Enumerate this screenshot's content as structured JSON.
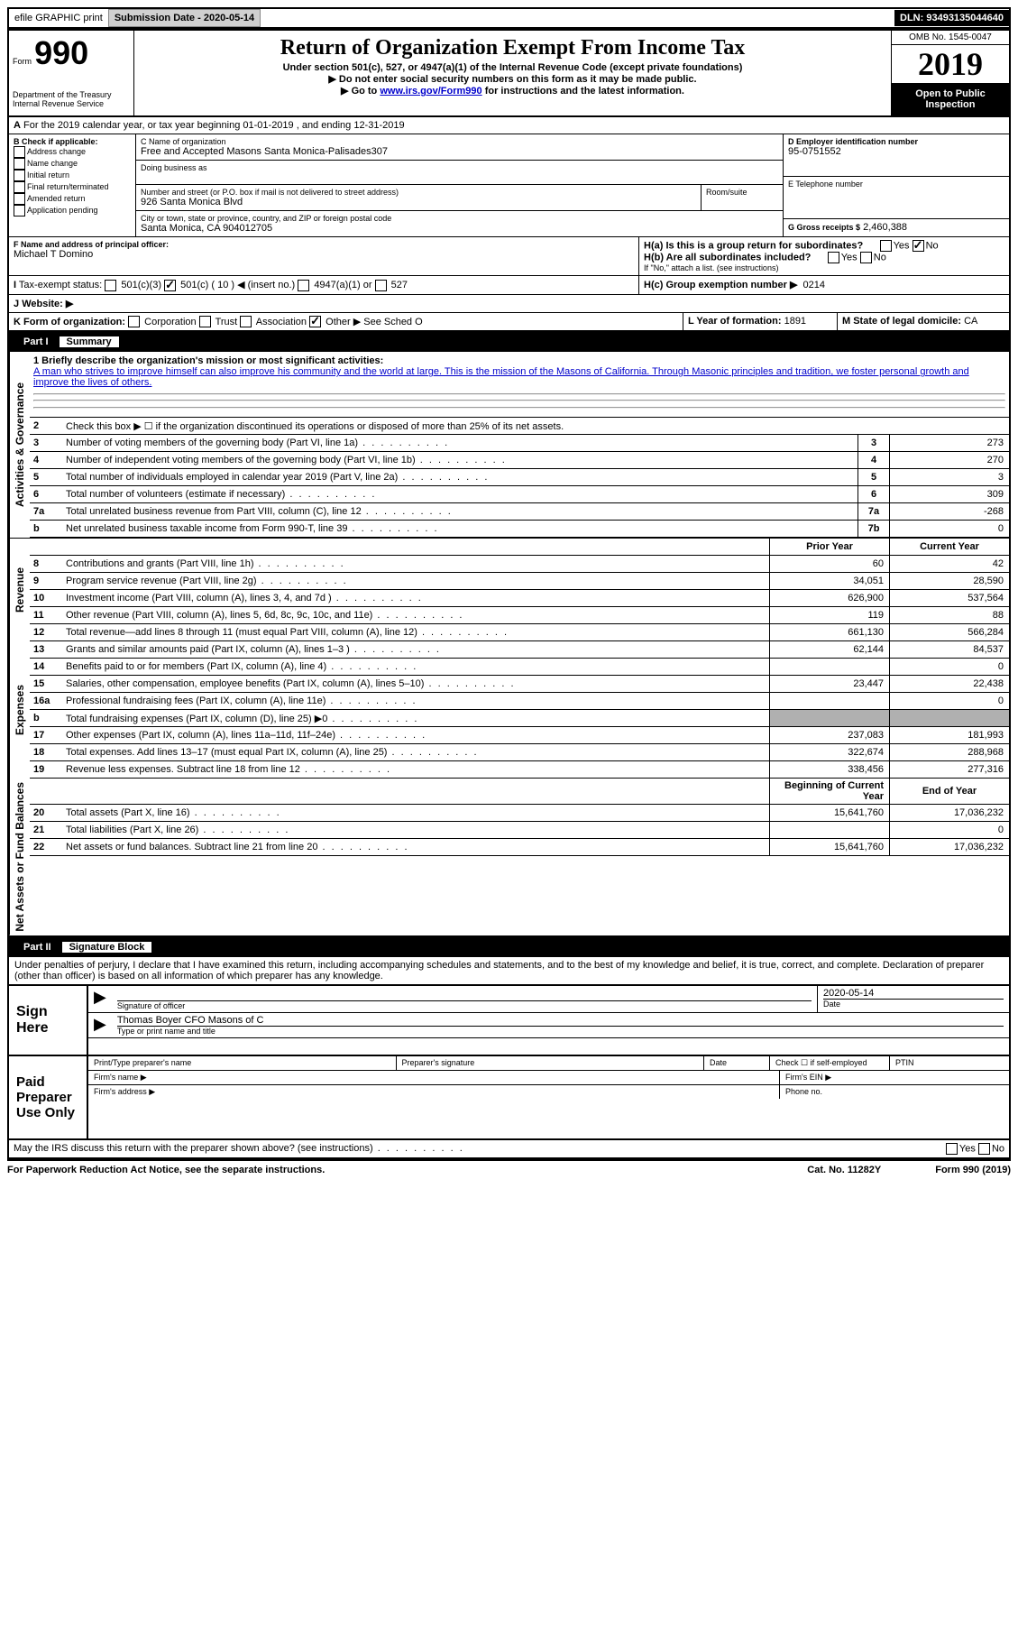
{
  "topbar": {
    "efile": "efile GRAPHIC print",
    "submission": "Submission Date - 2020-05-14",
    "dln": "DLN: 93493135044640"
  },
  "header": {
    "form": "Form",
    "num": "990",
    "dept": "Department of the Treasury\nInternal Revenue Service",
    "title": "Return of Organization Exempt From Income Tax",
    "sub1": "Under section 501(c), 527, or 4947(a)(1) of the Internal Revenue Code (except private foundations)",
    "sub2": "▶ Do not enter social security numbers on this form as it may be made public.",
    "sub3a": "▶ Go to ",
    "sub3link": "www.irs.gov/Form990",
    "sub3b": " for instructions and the latest information.",
    "omb": "OMB No. 1545-0047",
    "year": "2019",
    "open": "Open to Public Inspection"
  },
  "a_line": "For the 2019 calendar year, or tax year beginning 01-01-2019   , and ending 12-31-2019",
  "b": {
    "label": "B Check if applicable:",
    "opts": [
      "Address change",
      "Name change",
      "Initial return",
      "Final return/terminated",
      "Amended return",
      "Application pending"
    ]
  },
  "c": {
    "name_label": "C Name of organization",
    "name": "Free and Accepted Masons Santa Monica-Palisades307",
    "dba": "Doing business as",
    "addr_label": "Number and street (or P.O. box if mail is not delivered to street address)",
    "room": "Room/suite",
    "addr": "926 Santa Monica Blvd",
    "city_label": "City or town, state or province, country, and ZIP or foreign postal code",
    "city": "Santa Monica, CA  904012705"
  },
  "d": {
    "label": "D Employer identification number",
    "ein": "95-0751552"
  },
  "e": "E Telephone number",
  "g": {
    "label": "G Gross receipts $",
    "val": "2,460,388"
  },
  "f": {
    "label": "F  Name and address of principal officer:",
    "name": "Michael T Domino"
  },
  "h": {
    "a": "H(a)  Is this is a group return for subordinates?",
    "b": "H(b)  Are all subordinates included?",
    "note": "If \"No,\" attach a list. (see instructions)",
    "c": "H(c)  Group exemption number ▶",
    "cval": "0214"
  },
  "i": "Tax-exempt status:",
  "i_opts": {
    "a": "501(c)(3)",
    "b": "501(c) ( 10 ) ◀ (insert no.)",
    "c": "4947(a)(1) or",
    "d": "527"
  },
  "j": "Website: ▶",
  "k": "K Form of organization:",
  "k_opts": {
    "corp": "Corporation",
    "trust": "Trust",
    "assoc": "Association",
    "other": "Other ▶",
    "othertext": "See Sched O"
  },
  "l": {
    "label": "L Year of formation:",
    "val": "1891"
  },
  "m": {
    "label": "M State of legal domicile:",
    "val": "CA"
  },
  "part1": {
    "title": "Part I",
    "name": "Summary",
    "mission_label": "1  Briefly describe the organization's mission or most significant activities:",
    "mission": "A man who strives to improve himself can also improve his community and the world at large. This is the mission of the Masons of California. Through Masonic principles and tradition, we foster personal growth and improve the lives of others.",
    "line2": "Check this box ▶ ☐  if the organization discontinued its operations or disposed of more than 25% of its net assets.",
    "rows_single": [
      {
        "n": "3",
        "d": "Number of voting members of the governing body (Part VI, line 1a)",
        "b": "3",
        "v": "273"
      },
      {
        "n": "4",
        "d": "Number of independent voting members of the governing body (Part VI, line 1b)",
        "b": "4",
        "v": "270"
      },
      {
        "n": "5",
        "d": "Total number of individuals employed in calendar year 2019 (Part V, line 2a)",
        "b": "5",
        "v": "3"
      },
      {
        "n": "6",
        "d": "Total number of volunteers (estimate if necessary)",
        "b": "6",
        "v": "309"
      },
      {
        "n": "7a",
        "d": "Total unrelated business revenue from Part VIII, column (C), line 12",
        "b": "7a",
        "v": "-268"
      },
      {
        "n": "b",
        "d": "Net unrelated business taxable income from Form 990-T, line 39",
        "b": "7b",
        "v": "0"
      }
    ],
    "col_headers": {
      "prior": "Prior Year",
      "current": "Current Year"
    },
    "revenue": [
      {
        "n": "8",
        "d": "Contributions and grants (Part VIII, line 1h)",
        "p": "60",
        "c": "42"
      },
      {
        "n": "9",
        "d": "Program service revenue (Part VIII, line 2g)",
        "p": "34,051",
        "c": "28,590"
      },
      {
        "n": "10",
        "d": "Investment income (Part VIII, column (A), lines 3, 4, and 7d )",
        "p": "626,900",
        "c": "537,564"
      },
      {
        "n": "11",
        "d": "Other revenue (Part VIII, column (A), lines 5, 6d, 8c, 9c, 10c, and 11e)",
        "p": "119",
        "c": "88"
      },
      {
        "n": "12",
        "d": "Total revenue—add lines 8 through 11 (must equal Part VIII, column (A), line 12)",
        "p": "661,130",
        "c": "566,284"
      }
    ],
    "expenses": [
      {
        "n": "13",
        "d": "Grants and similar amounts paid (Part IX, column (A), lines 1–3 )",
        "p": "62,144",
        "c": "84,537"
      },
      {
        "n": "14",
        "d": "Benefits paid to or for members (Part IX, column (A), line 4)",
        "p": "",
        "c": "0"
      },
      {
        "n": "15",
        "d": "Salaries, other compensation, employee benefits (Part IX, column (A), lines 5–10)",
        "p": "23,447",
        "c": "22,438"
      },
      {
        "n": "16a",
        "d": "Professional fundraising fees (Part IX, column (A), line 11e)",
        "p": "",
        "c": "0"
      },
      {
        "n": "b",
        "d": "Total fundraising expenses (Part IX, column (D), line 25) ▶0",
        "p": "GRAY",
        "c": "GRAY"
      },
      {
        "n": "17",
        "d": "Other expenses (Part IX, column (A), lines 11a–11d, 11f–24e)",
        "p": "237,083",
        "c": "181,993"
      },
      {
        "n": "18",
        "d": "Total expenses. Add lines 13–17 (must equal Part IX, column (A), line 25)",
        "p": "322,674",
        "c": "288,968"
      },
      {
        "n": "19",
        "d": "Revenue less expenses. Subtract line 18 from line 12",
        "p": "338,456",
        "c": "277,316"
      }
    ],
    "na_headers": {
      "begin": "Beginning of Current Year",
      "end": "End of Year"
    },
    "netassets": [
      {
        "n": "20",
        "d": "Total assets (Part X, line 16)",
        "p": "15,641,760",
        "c": "17,036,232"
      },
      {
        "n": "21",
        "d": "Total liabilities (Part X, line 26)",
        "p": "",
        "c": "0"
      },
      {
        "n": "22",
        "d": "Net assets or fund balances. Subtract line 21 from line 20",
        "p": "15,641,760",
        "c": "17,036,232"
      }
    ]
  },
  "part2": {
    "title": "Part II",
    "name": "Signature Block",
    "penalty": "Under penalties of perjury, I declare that I have examined this return, including accompanying schedules and statements, and to the best of my knowledge and belief, it is true, correct, and complete. Declaration of preparer (other than officer) is based on all information of which preparer has any knowledge.",
    "sign": "Sign Here",
    "sig_officer": "Signature of officer",
    "date": "Date",
    "date_val": "2020-05-14",
    "name_line": "Thomas Boyer  CFO Masons of C",
    "type_print": "Type or print name and title",
    "paid": "Paid Preparer Use Only",
    "pp_name": "Print/Type preparer's name",
    "pp_sig": "Preparer's signature",
    "pp_date": "Date",
    "pp_check": "Check ☐ if self-employed",
    "ptin": "PTIN",
    "firm_name": "Firm's name    ▶",
    "firm_ein": "Firm's EIN ▶",
    "firm_addr": "Firm's address ▶",
    "phone": "Phone no.",
    "discuss": "May the IRS discuss this return with the preparer shown above? (see instructions)"
  },
  "footer": {
    "pra": "For Paperwork Reduction Act Notice, see the separate instructions.",
    "cat": "Cat. No. 11282Y",
    "form": "Form 990 (2019)"
  },
  "labels": {
    "activities": "Activities & Governance",
    "revenue": "Revenue",
    "expenses": "Expenses",
    "netassets": "Net Assets or Fund Balances"
  }
}
